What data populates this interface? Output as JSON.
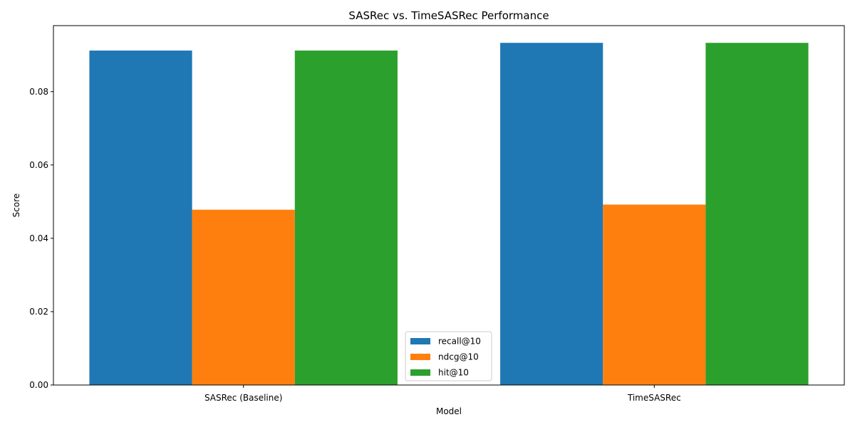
{
  "chart_data": {
    "type": "bar",
    "title": "SASRec vs. TimeSASRec Performance",
    "xlabel": "Model",
    "ylabel": "Score",
    "categories": [
      "SASRec (Baseline)",
      "TimeSASRec"
    ],
    "series": [
      {
        "name": "recall@10",
        "color": "#1f77b4",
        "values": [
          0.0912,
          0.0933
        ]
      },
      {
        "name": "ndcg@10",
        "color": "#ff7f0e",
        "values": [
          0.0478,
          0.0492
        ]
      },
      {
        "name": "hit@10",
        "color": "#2ca02c",
        "values": [
          0.0912,
          0.0933
        ]
      }
    ],
    "ylim": [
      0,
      0.098
    ],
    "yticks": [
      0.0,
      0.02,
      0.04,
      0.06,
      0.08
    ],
    "ytick_labels": [
      "0.00",
      "0.02",
      "0.04",
      "0.06",
      "0.08"
    ],
    "grid": false,
    "legend_position": "lower-center"
  }
}
